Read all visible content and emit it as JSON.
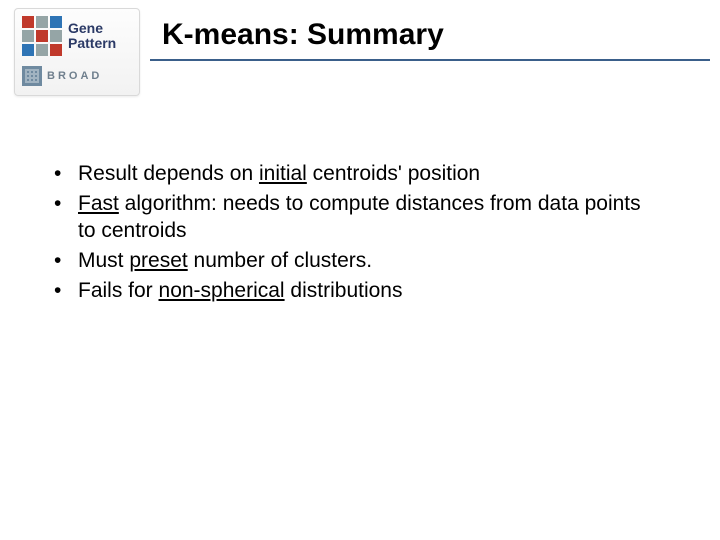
{
  "title": "K-means: Summary",
  "logo": {
    "gene": "Gene",
    "pattern": "Pattern",
    "broad": "BROAD",
    "grid_colors": [
      "#c0392b",
      "#95a5a6",
      "#2e74b5",
      "#95a5a6",
      "#c0392b",
      "#95a5a6",
      "#2e74b5",
      "#95a5a6",
      "#c0392b"
    ]
  },
  "bullets": [
    {
      "pre": "Result depends on ",
      "u": "initial",
      "post": " centroids' position"
    },
    {
      "pre": "",
      "u": "Fast",
      "post": " algorithm: needs to compute distances from data points to centroids"
    },
    {
      "pre": "Must ",
      "u": "preset",
      "post": " number of clusters."
    },
    {
      "pre": "Fails for ",
      "u": "non-spherical",
      "post": " distributions"
    }
  ],
  "style": {
    "title_fontsize": 30,
    "title_color": "#000000",
    "rule_color": "#3a5f8a",
    "body_fontsize": 21,
    "body_color": "#000000",
    "background": "#ffffff"
  }
}
